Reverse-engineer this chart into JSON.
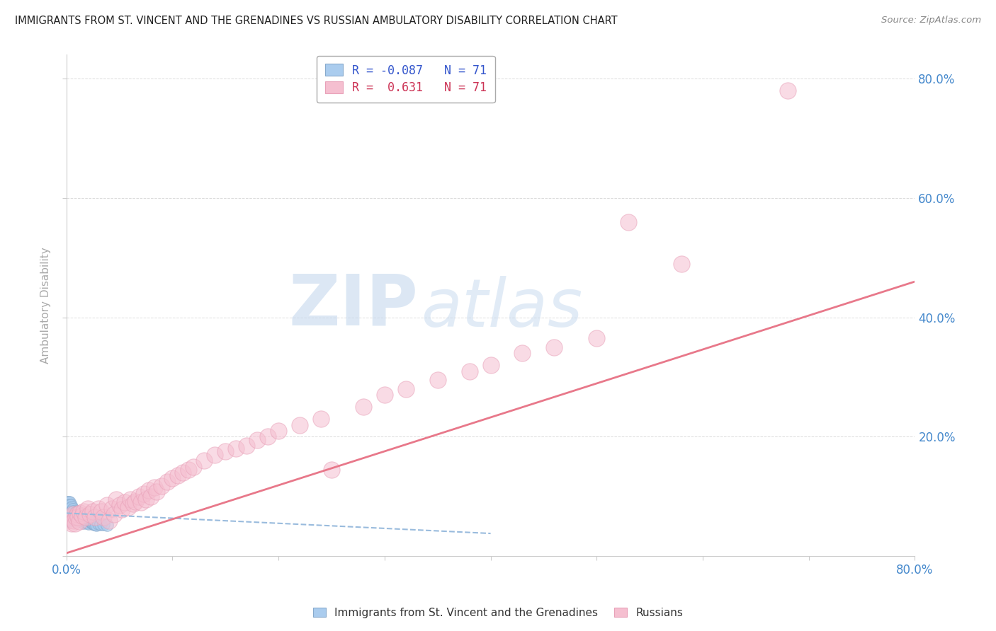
{
  "title": "IMMIGRANTS FROM ST. VINCENT AND THE GRENADINES VS RUSSIAN AMBULATORY DISABILITY CORRELATION CHART",
  "source": "Source: ZipAtlas.com",
  "ylabel": "Ambulatory Disability",
  "watermark_zip": "ZIP",
  "watermark_atlas": "atlas",
  "xlim": [
    0.0,
    0.8
  ],
  "ylim": [
    0.0,
    0.84
  ],
  "bg_color": "#ffffff",
  "blue_color": "#aaccee",
  "pink_color": "#f5bfd0",
  "blue_edge_color": "#88aacc",
  "pink_edge_color": "#e8a0b8",
  "blue_line_color": "#99bbdd",
  "pink_line_color": "#e8788a",
  "grid_color": "#cccccc",
  "axis_label_color": "#4488cc",
  "title_color": "#222222",
  "legend_r_blue": "R = -0.087   N = 71",
  "legend_r_pink": "R =  0.631   N = 71",
  "legend_blue_label": "Immigrants from St. Vincent and the Grenadines",
  "legend_pink_label": "Russians",
  "blue_trend_x": [
    0.0,
    0.4
  ],
  "blue_trend_y": [
    0.072,
    0.038
  ],
  "pink_trend_x": [
    0.0,
    0.8
  ],
  "pink_trend_y": [
    0.005,
    0.46
  ],
  "blue_x": [
    0.001,
    0.001,
    0.001,
    0.001,
    0.001,
    0.001,
    0.001,
    0.002,
    0.002,
    0.002,
    0.002,
    0.002,
    0.002,
    0.002,
    0.003,
    0.003,
    0.003,
    0.003,
    0.003,
    0.003,
    0.003,
    0.004,
    0.004,
    0.004,
    0.004,
    0.005,
    0.005,
    0.005,
    0.005,
    0.006,
    0.006,
    0.006,
    0.007,
    0.007,
    0.007,
    0.008,
    0.008,
    0.008,
    0.009,
    0.009,
    0.01,
    0.01,
    0.01,
    0.011,
    0.011,
    0.012,
    0.012,
    0.013,
    0.013,
    0.014,
    0.014,
    0.015,
    0.015,
    0.016,
    0.016,
    0.017,
    0.018,
    0.019,
    0.02,
    0.021,
    0.022,
    0.023,
    0.024,
    0.025,
    0.026,
    0.027,
    0.028,
    0.03,
    0.032,
    0.035,
    0.038
  ],
  "blue_y": [
    0.09,
    0.085,
    0.08,
    0.075,
    0.07,
    0.065,
    0.06,
    0.09,
    0.085,
    0.08,
    0.075,
    0.07,
    0.065,
    0.06,
    0.09,
    0.085,
    0.08,
    0.075,
    0.07,
    0.065,
    0.06,
    0.085,
    0.08,
    0.072,
    0.065,
    0.082,
    0.075,
    0.068,
    0.062,
    0.078,
    0.07,
    0.063,
    0.075,
    0.068,
    0.062,
    0.073,
    0.066,
    0.06,
    0.07,
    0.063,
    0.075,
    0.068,
    0.062,
    0.07,
    0.063,
    0.068,
    0.061,
    0.066,
    0.06,
    0.065,
    0.059,
    0.063,
    0.057,
    0.061,
    0.056,
    0.06,
    0.058,
    0.057,
    0.056,
    0.055,
    0.06,
    0.058,
    0.056,
    0.055,
    0.054,
    0.053,
    0.052,
    0.055,
    0.054,
    0.053,
    0.052
  ],
  "pink_x": [
    0.002,
    0.004,
    0.005,
    0.006,
    0.007,
    0.008,
    0.009,
    0.01,
    0.011,
    0.012,
    0.013,
    0.015,
    0.016,
    0.018,
    0.02,
    0.022,
    0.025,
    0.027,
    0.03,
    0.033,
    0.035,
    0.038,
    0.04,
    0.043,
    0.045,
    0.047,
    0.05,
    0.052,
    0.055,
    0.058,
    0.06,
    0.063,
    0.065,
    0.068,
    0.07,
    0.073,
    0.075,
    0.078,
    0.08,
    0.083,
    0.085,
    0.09,
    0.095,
    0.1,
    0.105,
    0.11,
    0.115,
    0.12,
    0.13,
    0.14,
    0.15,
    0.16,
    0.17,
    0.18,
    0.19,
    0.2,
    0.22,
    0.24,
    0.25,
    0.28,
    0.3,
    0.32,
    0.35,
    0.38,
    0.4,
    0.43,
    0.46,
    0.5,
    0.53,
    0.58,
    0.68
  ],
  "pink_y": [
    0.06,
    0.065,
    0.055,
    0.07,
    0.06,
    0.055,
    0.065,
    0.07,
    0.065,
    0.058,
    0.072,
    0.068,
    0.075,
    0.065,
    0.08,
    0.07,
    0.075,
    0.065,
    0.08,
    0.075,
    0.065,
    0.085,
    0.06,
    0.08,
    0.07,
    0.095,
    0.085,
    0.078,
    0.09,
    0.082,
    0.095,
    0.088,
    0.092,
    0.1,
    0.09,
    0.105,
    0.095,
    0.11,
    0.1,
    0.115,
    0.108,
    0.118,
    0.125,
    0.13,
    0.135,
    0.14,
    0.145,
    0.15,
    0.16,
    0.17,
    0.175,
    0.18,
    0.185,
    0.195,
    0.2,
    0.21,
    0.22,
    0.23,
    0.145,
    0.25,
    0.27,
    0.28,
    0.295,
    0.31,
    0.32,
    0.34,
    0.35,
    0.365,
    0.56,
    0.49,
    0.78
  ]
}
